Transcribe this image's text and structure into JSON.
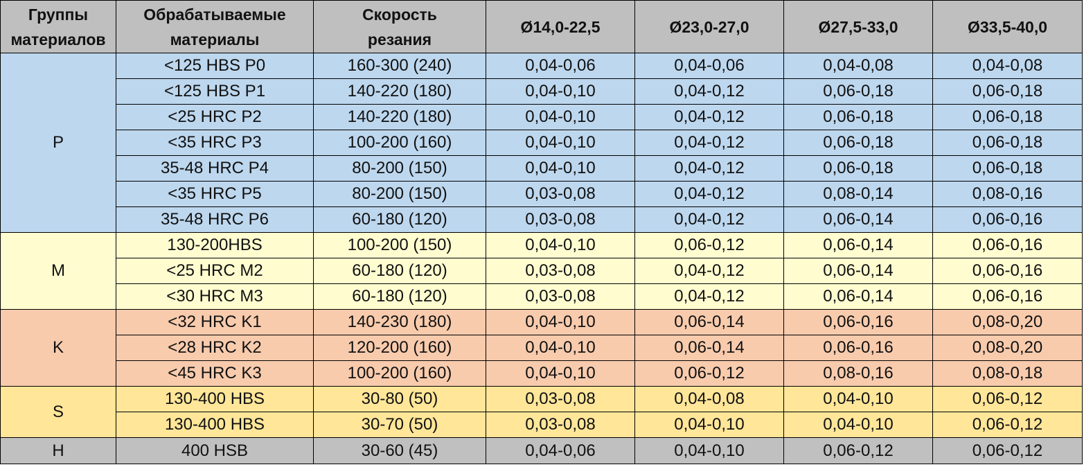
{
  "header": {
    "group_line1": "Группы",
    "group_line2": "материалов",
    "material_line1": "Обрабатываемые",
    "material_line2": "материалы",
    "speed_line1": "Скорость",
    "speed_line2": "резания",
    "d1": "Ø14,0-22,5",
    "d2": "Ø23,0-27,0",
    "d3": "Ø27,5-33,0",
    "d4": "Ø33,5-40,0"
  },
  "colors": {
    "header": "#bfbfbf",
    "P": "#bdd7ee",
    "M": "#fffdd0",
    "K": "#f8cbad",
    "S": "#ffe699",
    "H": "#c0c0c0"
  },
  "groups": [
    {
      "name": "P",
      "color_key": "P",
      "rows": [
        {
          "material": "<125 HBS P0",
          "speed": "160-300 (240)",
          "d1": "0,04-0,06",
          "d2": "0,04-0,06",
          "d3": "0,04-0,08",
          "d4": "0,04-0,08"
        },
        {
          "material": "<125 HBS P1",
          "speed": "140-220 (180)",
          "d1": "0,04-0,10",
          "d2": "0,04-0,12",
          "d3": "0,06-0,18",
          "d4": "0,06-0,18"
        },
        {
          "material": "<25 HRC P2",
          "speed": "140-220 (180)",
          "d1": "0,04-0,10",
          "d2": "0,04-0,12",
          "d3": "0,06-0,18",
          "d4": "0,06-0,18"
        },
        {
          "material": "<35 HRC P3",
          "speed": "100-200 (160)",
          "d1": "0,04-0,10",
          "d2": "0,04-0,12",
          "d3": "0,06-0,18",
          "d4": "0,06-0,18"
        },
        {
          "material": "35-48 HRC P4",
          "speed": "80-200 (150)",
          "d1": "0,04-0,10",
          "d2": "0,04-0,12",
          "d3": "0,06-0,18",
          "d4": "0,06-0,18"
        },
        {
          "material": "<35 HRC P5",
          "speed": "80-200 (150)",
          "d1": "0,03-0,08",
          "d2": "0,04-0,12",
          "d3": "0,08-0,14",
          "d4": "0,08-0,16"
        },
        {
          "material": "35-48 HRC P6",
          "speed": "60-180 (120)",
          "d1": "0,03-0,08",
          "d2": "0,04-0,12",
          "d3": "0,06-0,14",
          "d4": "0,06-0,16"
        }
      ]
    },
    {
      "name": "M",
      "color_key": "M",
      "rows": [
        {
          "material": "130-200HBS",
          "speed": "100-200 (150)",
          "d1": "0,04-0,10",
          "d2": "0,06-0,12",
          "d3": "0,06-0,14",
          "d4": "0,06-0,16"
        },
        {
          "material": "<25 HRC M2",
          "speed": "60-180 (120)",
          "d1": "0,03-0,08",
          "d2": "0,04-0,12",
          "d3": "0,06-0,14",
          "d4": "0,06-0,16"
        },
        {
          "material": "<30 HRC M3",
          "speed": "60-180 (120)",
          "d1": "0,03-0,08",
          "d2": "0,04-0,12",
          "d3": "0,06-0,14",
          "d4": "0,06-0,16"
        }
      ]
    },
    {
      "name": "K",
      "color_key": "K",
      "rows": [
        {
          "material": "<32 HRC K1",
          "speed": "140-230 (180)",
          "d1": "0,04-0,10",
          "d2": "0,06-0,14",
          "d3": "0,06-0,16",
          "d4": "0,08-0,20"
        },
        {
          "material": "<28 HRC K2",
          "speed": "120-200 (160)",
          "d1": "0,04-0,10",
          "d2": "0,06-0,14",
          "d3": "0,06-0,16",
          "d4": "0,08-0,20"
        },
        {
          "material": "<45 HRC K3",
          "speed": "100-200 (160)",
          "d1": "0,04-0,10",
          "d2": "0,06-0,12",
          "d3": "0,08-0,16",
          "d4": "0,08-0,18"
        }
      ]
    },
    {
      "name": "S",
      "color_key": "S",
      "rows": [
        {
          "material": "130-400 HBS",
          "speed": "30-80 (50)",
          "d1": "0,03-0,08",
          "d2": "0,04-0,08",
          "d3": "0,04-0,10",
          "d4": "0,06-0,12"
        },
        {
          "material": "130-400 HBS",
          "speed": "30-70 (50)",
          "d1": "0,03-0,08",
          "d2": "0,04-0,10",
          "d3": "0,04-0,10",
          "d4": "0,06-0,12"
        }
      ]
    },
    {
      "name": "H",
      "color_key": "H",
      "rows": [
        {
          "material": "400 HSB",
          "speed": "30-60 (45)",
          "d1": "0,04-0,06",
          "d2": "0,04-0,10",
          "d3": "0,06-0,12",
          "d4": "0,06-0,12"
        }
      ]
    }
  ]
}
